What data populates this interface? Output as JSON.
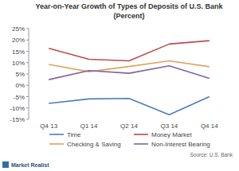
{
  "chart_data": {
    "type": "line",
    "title": "Year-on-Year Growth of Types of Deposits of U.S. Bank",
    "subtitle": "(Percent)",
    "source": "Source: U.S. Bank",
    "logo": "Market Realist",
    "categories": [
      "Q4 13",
      "Q1 14",
      "Q2 14",
      "Q3 14",
      "Q4 14"
    ],
    "series": [
      {
        "name": "Time",
        "color": "#4a7ebb",
        "values": [
          -8,
          -6,
          -5.8,
          -13,
          -5
        ]
      },
      {
        "name": "Money Market",
        "color": "#be4b48",
        "values": [
          16.3,
          11.5,
          10.8,
          18.2,
          19.7
        ]
      },
      {
        "name": "Checking & Saving",
        "color": "#e0a35c",
        "values": [
          9.2,
          6,
          8.3,
          10.8,
          8.2
        ]
      },
      {
        "name": "Non-Interest Bearing",
        "color": "#8064a2",
        "values": [
          2.5,
          6.5,
          5.3,
          8.6,
          3.1
        ]
      }
    ],
    "ylim": [
      -15,
      25
    ],
    "yticks": [
      {
        "value": -15,
        "label": "-15%"
      },
      {
        "value": -10,
        "label": "-10%"
      },
      {
        "value": -5,
        "label": "-5%"
      },
      {
        "value": 0,
        "label": "0%"
      },
      {
        "value": 5,
        "label": "5%"
      },
      {
        "value": 10,
        "label": "10%"
      },
      {
        "value": 15,
        "label": "15%"
      },
      {
        "value": 20,
        "label": "20%"
      },
      {
        "value": 25,
        "label": "25%"
      }
    ],
    "grid": false,
    "legend": "bottom"
  }
}
